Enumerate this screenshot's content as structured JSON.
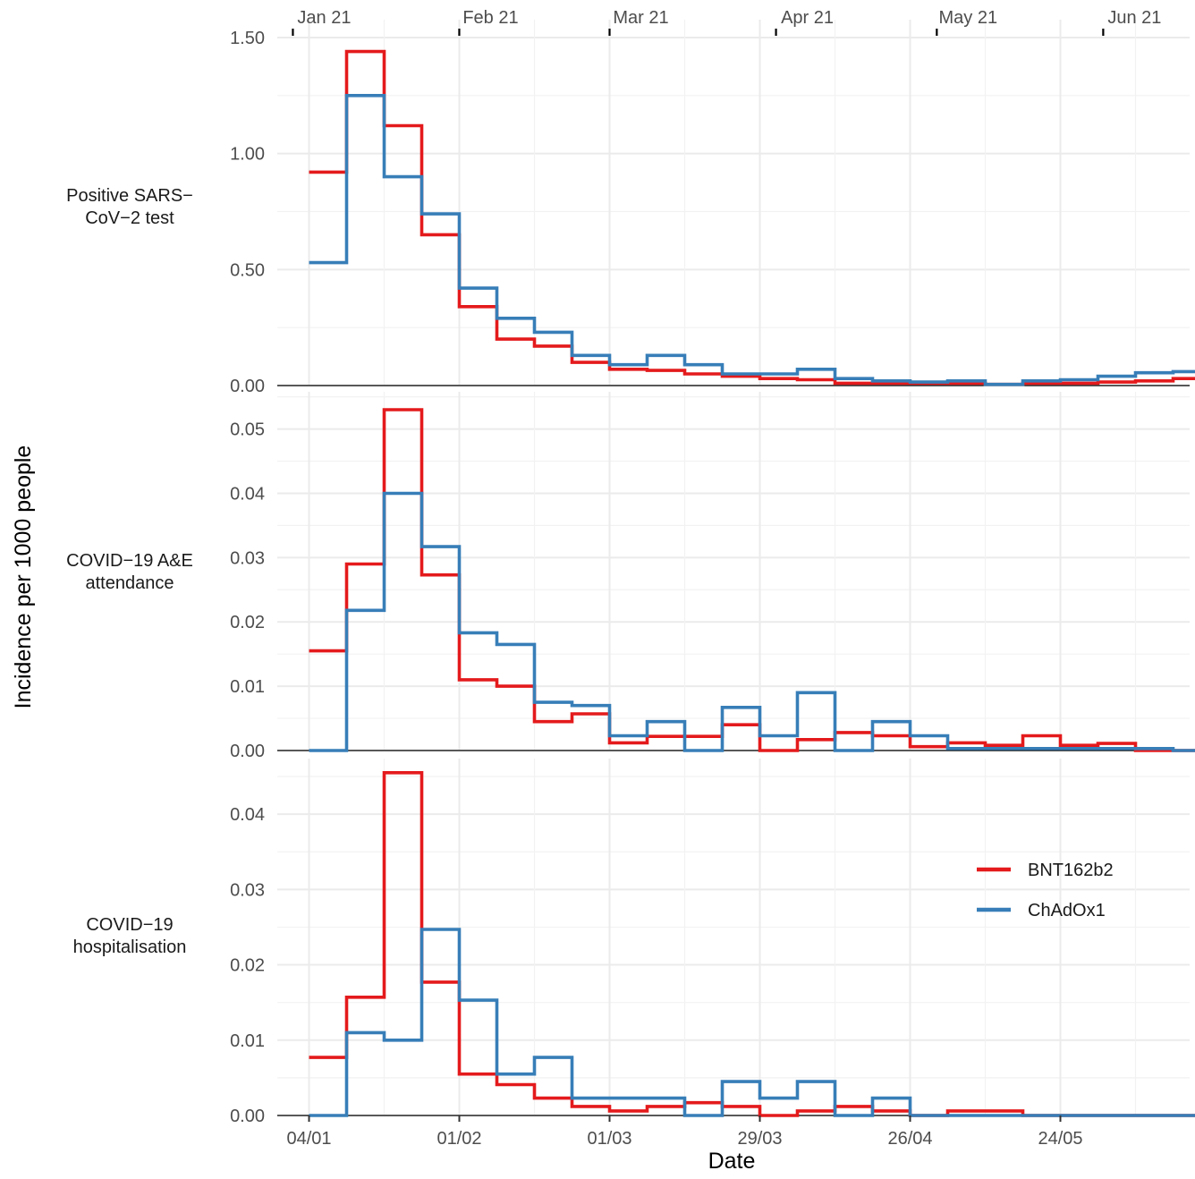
{
  "chart_data": {
    "type": "line",
    "step": true,
    "xlabel": "Date",
    "ylabel": "Incidence per 1000 people",
    "x_ticks_bottom": [
      "04/01",
      "01/02",
      "01/03",
      "29/03",
      "26/04",
      "24/05"
    ],
    "x_ticks_top": [
      "Jan 21",
      "Feb 21",
      "Mar 21",
      "Apr 21",
      "May 21",
      "Jun 21"
    ],
    "week_starts": [
      "04/01",
      "11/01",
      "18/01",
      "25/01",
      "01/02",
      "08/02",
      "15/02",
      "22/02",
      "01/03",
      "08/03",
      "15/03",
      "22/03",
      "29/03",
      "05/04",
      "12/04",
      "19/04",
      "26/04",
      "03/05",
      "10/05",
      "17/05",
      "24/05",
      "31/05",
      "07/06",
      "14/06"
    ],
    "legend": {
      "position": "right-inside",
      "entries": [
        "BNT162b2",
        "ChAdOx1"
      ]
    },
    "colors": {
      "BNT162b2": "#e41a1c",
      "ChAdOx1": "#377eb8"
    },
    "panels": [
      {
        "label": "Positive SARS−\nCoV−2 test",
        "ylim": [
          0,
          1.5
        ],
        "yticks": [
          "0.00",
          "0.50",
          "1.00",
          "1.50"
        ],
        "series": [
          {
            "name": "BNT162b2",
            "values": [
              0.92,
              1.44,
              1.12,
              0.65,
              0.34,
              0.2,
              0.17,
              0.1,
              0.07,
              0.065,
              0.05,
              0.04,
              0.03,
              0.025,
              0.01,
              0.01,
              0.01,
              0.01,
              0.005,
              0.01,
              0.01,
              0.015,
              0.02,
              0.03
            ]
          },
          {
            "name": "ChAdOx1",
            "values": [
              0.53,
              1.25,
              0.9,
              0.74,
              0.42,
              0.29,
              0.23,
              0.13,
              0.09,
              0.13,
              0.09,
              0.05,
              0.05,
              0.07,
              0.03,
              0.02,
              0.015,
              0.02,
              0.005,
              0.02,
              0.025,
              0.04,
              0.055,
              0.06
            ]
          }
        ]
      },
      {
        "label": "COVID−19 A&E\nattendance",
        "ylim": [
          0,
          0.053
        ],
        "yticks": [
          "0.00",
          "0.01",
          "0.02",
          "0.03",
          "0.04",
          "0.05"
        ],
        "series": [
          {
            "name": "BNT162b2",
            "values": [
              0.0155,
              0.029,
              0.053,
              0.0273,
              0.011,
              0.01,
              0.0045,
              0.0057,
              0.0012,
              0.0022,
              0.0022,
              0.004,
              0.0,
              0.0017,
              0.0028,
              0.0023,
              0.0006,
              0.0012,
              0.0008,
              0.0023,
              0.0008,
              0.0011,
              0.0,
              0.0
            ]
          },
          {
            "name": "ChAdOx1",
            "values": [
              0.0,
              0.0218,
              0.04,
              0.0317,
              0.0183,
              0.0165,
              0.0075,
              0.007,
              0.0023,
              0.0045,
              0.0,
              0.0067,
              0.0023,
              0.009,
              0.0,
              0.0045,
              0.0023,
              0.0003,
              0.0003,
              0.0003,
              0.0003,
              0.0003,
              0.0003,
              0.0
            ]
          }
        ]
      },
      {
        "label": "COVID−19\nhospitalisation",
        "ylim": [
          0,
          0.045
        ],
        "yticks": [
          "0.00",
          "0.01",
          "0.02",
          "0.03",
          "0.04"
        ],
        "series": [
          {
            "name": "BNT162b2",
            "values": [
              0.0077,
              0.0157,
              0.0455,
              0.0177,
              0.0055,
              0.0041,
              0.0023,
              0.0012,
              0.0006,
              0.0012,
              0.0017,
              0.0012,
              0.0,
              0.0006,
              0.0012,
              0.0006,
              0.0,
              0.0006,
              0.0006,
              0.0,
              0.0,
              0.0,
              0.0,
              0.0
            ]
          },
          {
            "name": "ChAdOx1",
            "values": [
              0.0,
              0.011,
              0.01,
              0.0247,
              0.0153,
              0.0055,
              0.0077,
              0.0023,
              0.0023,
              0.0023,
              0.0,
              0.0045,
              0.0023,
              0.0045,
              0.0,
              0.0023,
              0.0,
              0.0,
              0.0,
              0.0,
              0.0,
              0.0,
              0.0,
              0.0
            ]
          }
        ]
      }
    ]
  }
}
